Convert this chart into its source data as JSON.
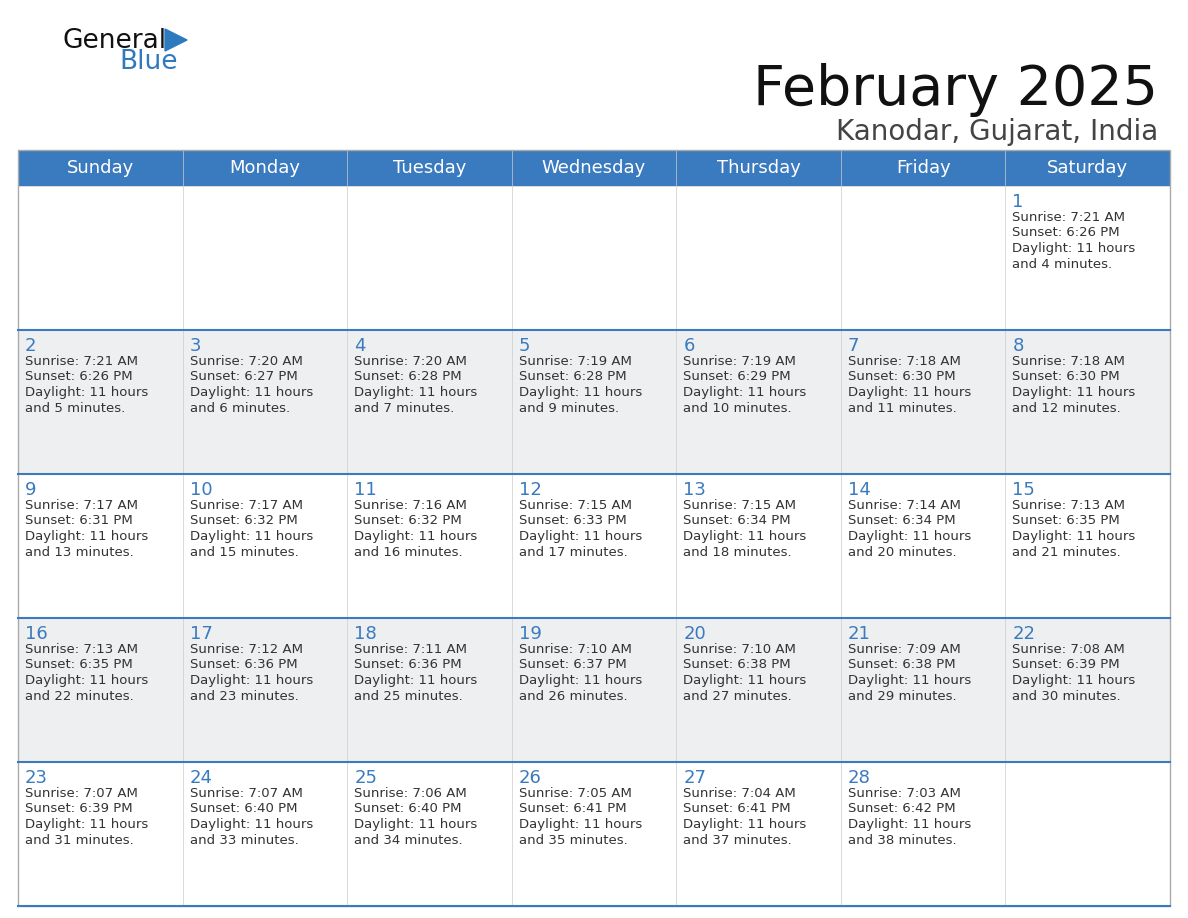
{
  "title": "February 2025",
  "subtitle": "Kanodar, Gujarat, India",
  "header_bg_color": "#3a7abf",
  "header_text_color": "#FFFFFF",
  "cell_bg_white": "#FFFFFF",
  "cell_bg_gray": "#EEEFF0",
  "text_color": "#333333",
  "day_number_color": "#3a7abf",
  "days_of_week": [
    "Sunday",
    "Monday",
    "Tuesday",
    "Wednesday",
    "Thursday",
    "Friday",
    "Saturday"
  ],
  "calendar_data": [
    [
      null,
      null,
      null,
      null,
      null,
      null,
      {
        "day": 1,
        "sunrise": "7:21 AM",
        "sunset": "6:26 PM",
        "daylight": "11 hours and 4 minutes"
      }
    ],
    [
      {
        "day": 2,
        "sunrise": "7:21 AM",
        "sunset": "6:26 PM",
        "daylight": "11 hours and 5 minutes"
      },
      {
        "day": 3,
        "sunrise": "7:20 AM",
        "sunset": "6:27 PM",
        "daylight": "11 hours and 6 minutes"
      },
      {
        "day": 4,
        "sunrise": "7:20 AM",
        "sunset": "6:28 PM",
        "daylight": "11 hours and 7 minutes"
      },
      {
        "day": 5,
        "sunrise": "7:19 AM",
        "sunset": "6:28 PM",
        "daylight": "11 hours and 9 minutes"
      },
      {
        "day": 6,
        "sunrise": "7:19 AM",
        "sunset": "6:29 PM",
        "daylight": "11 hours and 10 minutes"
      },
      {
        "day": 7,
        "sunrise": "7:18 AM",
        "sunset": "6:30 PM",
        "daylight": "11 hours and 11 minutes"
      },
      {
        "day": 8,
        "sunrise": "7:18 AM",
        "sunset": "6:30 PM",
        "daylight": "11 hours and 12 minutes"
      }
    ],
    [
      {
        "day": 9,
        "sunrise": "7:17 AM",
        "sunset": "6:31 PM",
        "daylight": "11 hours and 13 minutes"
      },
      {
        "day": 10,
        "sunrise": "7:17 AM",
        "sunset": "6:32 PM",
        "daylight": "11 hours and 15 minutes"
      },
      {
        "day": 11,
        "sunrise": "7:16 AM",
        "sunset": "6:32 PM",
        "daylight": "11 hours and 16 minutes"
      },
      {
        "day": 12,
        "sunrise": "7:15 AM",
        "sunset": "6:33 PM",
        "daylight": "11 hours and 17 minutes"
      },
      {
        "day": 13,
        "sunrise": "7:15 AM",
        "sunset": "6:34 PM",
        "daylight": "11 hours and 18 minutes"
      },
      {
        "day": 14,
        "sunrise": "7:14 AM",
        "sunset": "6:34 PM",
        "daylight": "11 hours and 20 minutes"
      },
      {
        "day": 15,
        "sunrise": "7:13 AM",
        "sunset": "6:35 PM",
        "daylight": "11 hours and 21 minutes"
      }
    ],
    [
      {
        "day": 16,
        "sunrise": "7:13 AM",
        "sunset": "6:35 PM",
        "daylight": "11 hours and 22 minutes"
      },
      {
        "day": 17,
        "sunrise": "7:12 AM",
        "sunset": "6:36 PM",
        "daylight": "11 hours and 23 minutes"
      },
      {
        "day": 18,
        "sunrise": "7:11 AM",
        "sunset": "6:36 PM",
        "daylight": "11 hours and 25 minutes"
      },
      {
        "day": 19,
        "sunrise": "7:10 AM",
        "sunset": "6:37 PM",
        "daylight": "11 hours and 26 minutes"
      },
      {
        "day": 20,
        "sunrise": "7:10 AM",
        "sunset": "6:38 PM",
        "daylight": "11 hours and 27 minutes"
      },
      {
        "day": 21,
        "sunrise": "7:09 AM",
        "sunset": "6:38 PM",
        "daylight": "11 hours and 29 minutes"
      },
      {
        "day": 22,
        "sunrise": "7:08 AM",
        "sunset": "6:39 PM",
        "daylight": "11 hours and 30 minutes"
      }
    ],
    [
      {
        "day": 23,
        "sunrise": "7:07 AM",
        "sunset": "6:39 PM",
        "daylight": "11 hours and 31 minutes"
      },
      {
        "day": 24,
        "sunrise": "7:07 AM",
        "sunset": "6:40 PM",
        "daylight": "11 hours and 33 minutes"
      },
      {
        "day": 25,
        "sunrise": "7:06 AM",
        "sunset": "6:40 PM",
        "daylight": "11 hours and 34 minutes"
      },
      {
        "day": 26,
        "sunrise": "7:05 AM",
        "sunset": "6:41 PM",
        "daylight": "11 hours and 35 minutes"
      },
      {
        "day": 27,
        "sunrise": "7:04 AM",
        "sunset": "6:41 PM",
        "daylight": "11 hours and 37 minutes"
      },
      {
        "day": 28,
        "sunrise": "7:03 AM",
        "sunset": "6:42 PM",
        "daylight": "11 hours and 38 minutes"
      },
      null
    ]
  ]
}
